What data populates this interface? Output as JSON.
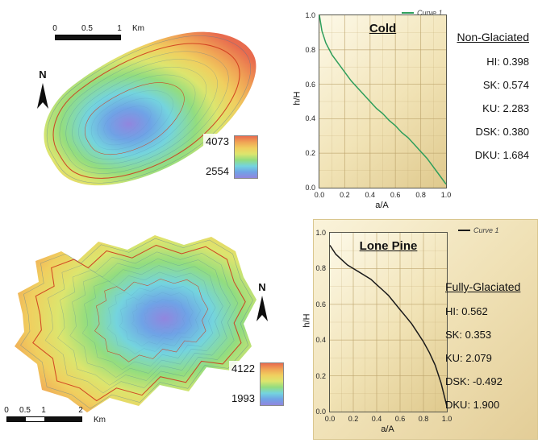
{
  "figure": {
    "elevation_ramp": [
      "#e86b4e",
      "#f0a455",
      "#f0cf5f",
      "#dce56e",
      "#93dd7f",
      "#74d4de",
      "#6fa3e6",
      "#9186de"
    ],
    "maps": {
      "cold_map": {
        "north_label": "N",
        "scalebar": {
          "ticks": [
            "0",
            "0.5",
            "1"
          ],
          "unit": "Km"
        },
        "elevation_legend": {
          "max": "4073",
          "min": "2554"
        }
      },
      "lone_pine_map": {
        "north_label": "N",
        "scalebar": {
          "ticks": [
            "0",
            "0.5",
            "1",
            "2"
          ],
          "unit": "Km"
        },
        "elevation_legend": {
          "max": "4122",
          "min": "1993"
        }
      }
    },
    "panels": {
      "cold": {
        "title": "Cold",
        "legend_label": "Curve 1",
        "stats_title": "Non-Glaciated",
        "stats": [
          "HI: 0.398",
          "SK: 0.574",
          "KU: 2.283",
          "DSK: 0.380",
          "DKU: 1.684"
        ]
      },
      "lone_pine": {
        "title": "Lone Pine",
        "legend_label": "Curve 1",
        "stats_title": "Fully-Glaciated",
        "stats": [
          "HI: 0.562",
          "SK: 0.353",
          "KU: 2.079",
          "DSK: -0.492",
          "DKU: 1.900"
        ]
      }
    }
  },
  "chart_data": [
    {
      "type": "line",
      "title": "Cold",
      "xlabel": "a/A",
      "ylabel": "h/H",
      "xlim": [
        0,
        1
      ],
      "ylim": [
        0,
        1
      ],
      "xticks": [
        0,
        0.2,
        0.4,
        0.6,
        0.8,
        1.0
      ],
      "yticks": [
        0,
        0.2,
        0.4,
        0.6,
        0.8,
        1.0
      ],
      "xminor": [
        0.1,
        0.3,
        0.5,
        0.7,
        0.9
      ],
      "yminor": [
        0.1,
        0.3,
        0.5,
        0.7,
        0.9
      ],
      "grid": true,
      "legend_position": "top-right",
      "series": [
        {
          "name": "Curve 1",
          "color": "#2e9e5b",
          "x": [
            0,
            0.02,
            0.05,
            0.1,
            0.15,
            0.2,
            0.25,
            0.3,
            0.35,
            0.4,
            0.45,
            0.5,
            0.55,
            0.6,
            0.65,
            0.7,
            0.75,
            0.8,
            0.85,
            0.9,
            0.95,
            1.0
          ],
          "y": [
            1.0,
            0.91,
            0.84,
            0.77,
            0.72,
            0.67,
            0.62,
            0.58,
            0.54,
            0.5,
            0.46,
            0.43,
            0.39,
            0.36,
            0.32,
            0.29,
            0.25,
            0.21,
            0.17,
            0.12,
            0.07,
            0.02
          ]
        }
      ],
      "stats": {
        "label": "Non-Glaciated",
        "HI": 0.398,
        "SK": 0.574,
        "KU": 2.283,
        "DSK": 0.38,
        "DKU": 1.684
      }
    },
    {
      "type": "line",
      "title": "Lone Pine",
      "xlabel": "a/A",
      "ylabel": "h/H",
      "xlim": [
        0,
        1
      ],
      "ylim": [
        0,
        1
      ],
      "xticks": [
        0,
        0.2,
        0.4,
        0.6,
        0.8,
        1.0
      ],
      "yticks": [
        0,
        0.2,
        0.4,
        0.6,
        0.8,
        1.0
      ],
      "xminor": [
        0.1,
        0.3,
        0.5,
        0.7,
        0.9
      ],
      "yminor": [
        0.1,
        0.3,
        0.5,
        0.7,
        0.9
      ],
      "grid": true,
      "legend_position": "top-right",
      "series": [
        {
          "name": "Curve 1",
          "color": "#1a1a1a",
          "x": [
            0,
            0.05,
            0.1,
            0.15,
            0.2,
            0.25,
            0.3,
            0.35,
            0.4,
            0.45,
            0.5,
            0.55,
            0.6,
            0.65,
            0.7,
            0.75,
            0.8,
            0.85,
            0.9,
            0.95,
            1.0
          ],
          "y": [
            0.93,
            0.88,
            0.85,
            0.82,
            0.8,
            0.78,
            0.76,
            0.74,
            0.71,
            0.68,
            0.65,
            0.61,
            0.57,
            0.53,
            0.49,
            0.44,
            0.39,
            0.33,
            0.26,
            0.16,
            0.03
          ]
        }
      ],
      "stats": {
        "label": "Fully-Glaciated",
        "HI": 0.562,
        "SK": 0.353,
        "KU": 2.079,
        "DSK": -0.492,
        "DKU": 1.9
      }
    }
  ]
}
